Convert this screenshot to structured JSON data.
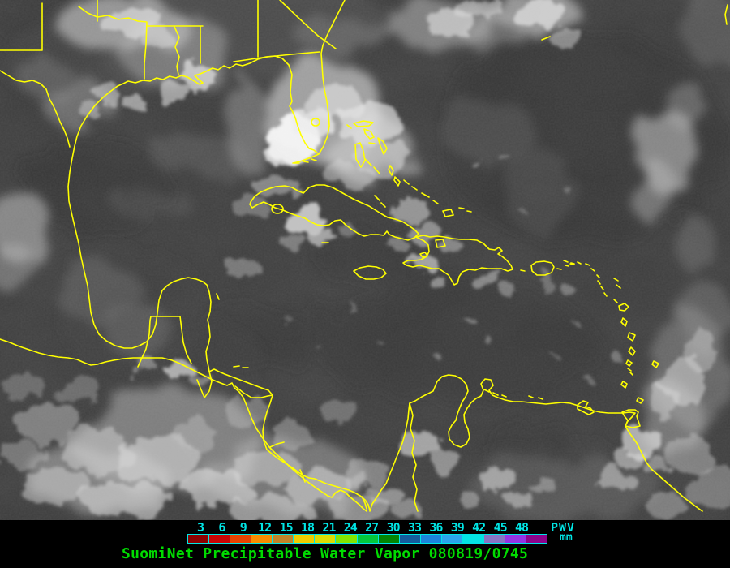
{
  "product": {
    "caption_text": "SuomiNet Precipitable Water Vapor 080819/0745",
    "caption_color": "#00dc00"
  },
  "colorbar": {
    "tick_labels": [
      "3",
      "6",
      "9",
      "12",
      "15",
      "18",
      "21",
      "24",
      "27",
      "30",
      "33",
      "36",
      "39",
      "42",
      "45",
      "48"
    ],
    "tick_color": "#00e6e6",
    "border_color": "#00e6e6",
    "unit_title": "PWV",
    "unit": "mm",
    "segment_colors": [
      "#8c0000",
      "#c80404",
      "#e84200",
      "#f88c00",
      "#c08428",
      "#eecc00",
      "#dcdc04",
      "#84e400",
      "#04c83c",
      "#048404",
      "#145c9c",
      "#1c84dc",
      "#2ca4ec",
      "#04e4e4",
      "#8874c4",
      "#9434e4",
      "#8c048c"
    ]
  },
  "map": {
    "coastline_color": "#ffff00",
    "ocean_color": "#3a3a3a",
    "regions_visible": [
      "United States Gulf Coast",
      "Florida",
      "Gulf of Mexico",
      "Bahamas",
      "Cuba",
      "Jamaica",
      "Hispaniola",
      "Puerto Rico",
      "Lesser Antilles",
      "Trinidad",
      "Yucatan Peninsula",
      "Central America",
      "Colombia",
      "Venezuela"
    ]
  }
}
